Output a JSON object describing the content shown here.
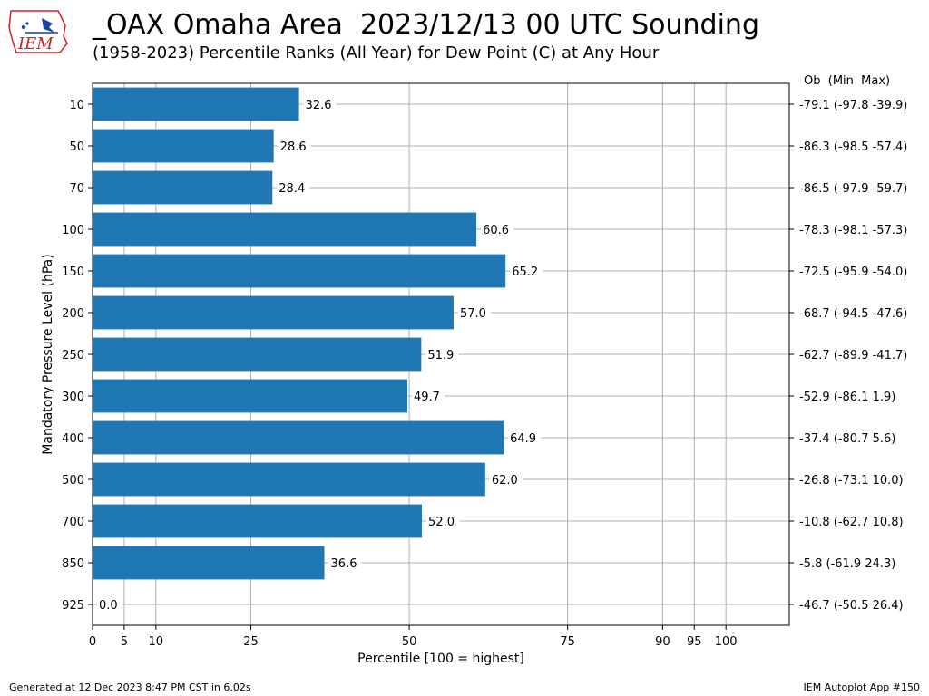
{
  "header": {
    "title": "_OAX Omaha Area  2023/12/13 00 UTC Sounding",
    "subtitle": "(1958-2023) Percentile Ranks (All Year) for Dew Point (C) at Any Hour",
    "logo_text": "IEM"
  },
  "footer": {
    "generated": "Generated at 12 Dec 2023 8:47 PM CST in 6.02s",
    "app": "IEM Autoplot App #150"
  },
  "colors": {
    "bar": "#1f77b4",
    "grid": "#b0b0b0",
    "logo": "#cc2222"
  },
  "chart_data": {
    "type": "bar",
    "orientation": "horizontal",
    "xlabel": "Percentile [100 = highest]",
    "ylabel": "Mandatory Pressure Level (hPa)",
    "right_header": "Ob  (Min  Max)",
    "xlim": [
      0,
      110
    ],
    "xticks": [
      0,
      5,
      10,
      25,
      50,
      75,
      90,
      95,
      100
    ],
    "grid": true,
    "categories": [
      "10",
      "50",
      "70",
      "100",
      "150",
      "200",
      "250",
      "300",
      "400",
      "500",
      "700",
      "850",
      "925"
    ],
    "values": [
      32.6,
      28.6,
      28.4,
      60.6,
      65.2,
      57.0,
      51.9,
      49.7,
      64.9,
      62.0,
      52.0,
      36.6,
      0.0
    ],
    "value_labels": [
      "32.6",
      "28.6",
      "28.4",
      "60.6",
      "65.2",
      "57.0",
      "51.9",
      "49.7",
      "64.9",
      "62.0",
      "52.0",
      "36.6",
      "0.0"
    ],
    "right_labels": [
      "-79.1 (-97.8 -39.9)",
      "-86.3 (-98.5 -57.4)",
      "-86.5 (-97.9 -59.7)",
      "-78.3 (-98.1 -57.3)",
      "-72.5 (-95.9 -54.0)",
      "-68.7 (-94.5 -47.6)",
      "-62.7 (-89.9 -41.7)",
      "-52.9 (-86.1 1.9)",
      "-37.4 (-80.7 5.6)",
      "-26.8 (-73.1 10.0)",
      "-10.8 (-62.7 10.8)",
      "-5.8 (-61.9 24.3)",
      "-46.7 (-50.5 26.4)"
    ]
  }
}
